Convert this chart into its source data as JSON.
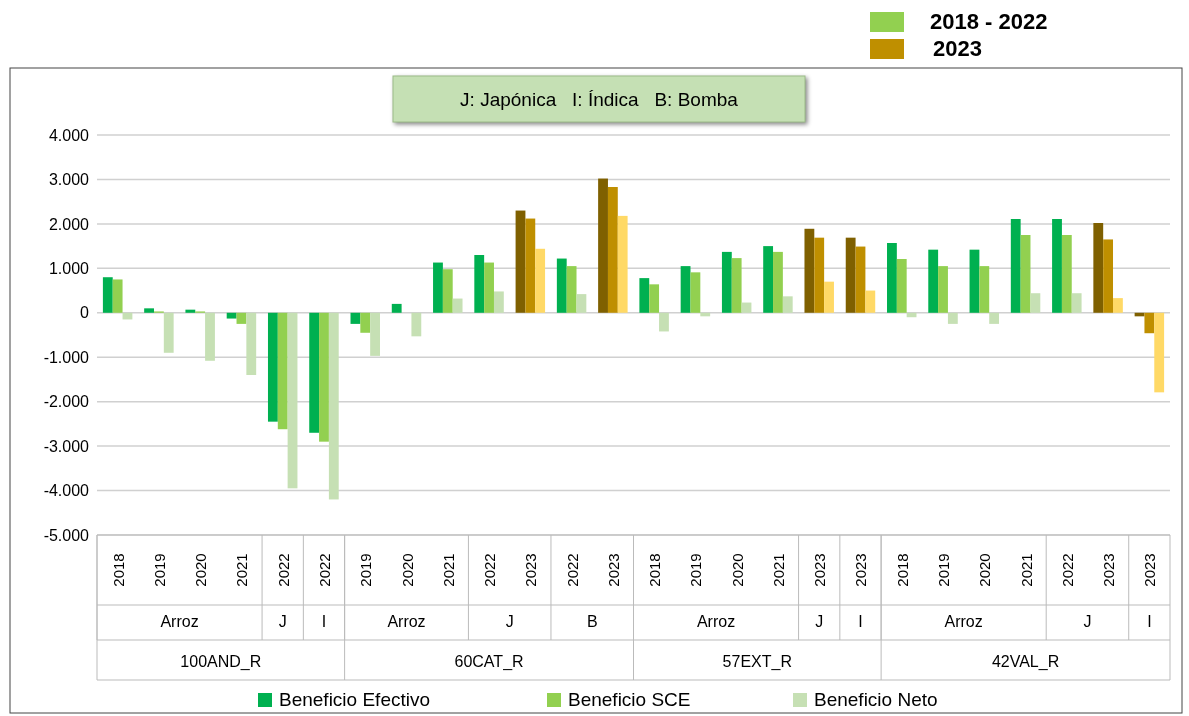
{
  "chart_data": {
    "type": "bar",
    "categories": [
      "2018",
      "2019",
      "2020",
      "2021",
      "2022",
      "2022",
      "2019",
      "2020",
      "2021",
      "2022",
      "2023",
      "2022",
      "2023",
      "2018",
      "2019",
      "2020",
      "2021",
      "2023",
      "2023",
      "2018",
      "2019",
      "2020",
      "2021",
      "2022",
      "2023",
      "2023"
    ],
    "series": [
      {
        "name": "Beneficio Efectivo",
        "color": "#00b050",
        "colors": [
          "#00b050",
          "#00b050",
          "#00b050",
          "#00b050",
          "#00b050",
          "#00b050",
          "#00b050",
          "#00b050",
          "#00b050",
          "#00b050",
          "#7f6000",
          "#00b050",
          "#7f6000",
          "#00b050",
          "#00b050",
          "#00b050",
          "#00b050",
          "#7f6000",
          "#7f6000",
          "#00b050",
          "#00b050",
          "#00b050",
          "#00b050",
          "#00b050",
          "#7f6000",
          "#7f6000"
        ],
        "values": [
          800,
          100,
          70,
          -130,
          -2450,
          -2700,
          -250,
          200,
          1130,
          1300,
          2300,
          1220,
          3020,
          780,
          1050,
          1370,
          1500,
          1890,
          1690,
          1570,
          1420,
          1420,
          2110,
          2110,
          2020,
          -80
        ]
      },
      {
        "name": "Beneficio SCE",
        "color": "#92d050",
        "colors": [
          "#92d050",
          "#92d050",
          "#92d050",
          "#92d050",
          "#92d050",
          "#92d050",
          "#92d050",
          "#92d050",
          "#92d050",
          "#92d050",
          "#bf8f00",
          "#92d050",
          "#bf8f00",
          "#92d050",
          "#92d050",
          "#92d050",
          "#92d050",
          "#bf8f00",
          "#bf8f00",
          "#92d050",
          "#92d050",
          "#92d050",
          "#92d050",
          "#92d050",
          "#bf8f00",
          "#bf8f00"
        ],
        "values": [
          750,
          30,
          30,
          -250,
          -2620,
          -2900,
          -450,
          0,
          980,
          1130,
          2120,
          1050,
          2830,
          640,
          910,
          1230,
          1370,
          1690,
          1490,
          1210,
          1050,
          1050,
          1750,
          1750,
          1650,
          -460
        ]
      },
      {
        "name": "Beneficio Neto",
        "color": "#c6e0b4",
        "colors": [
          "#c6e0b4",
          "#c6e0b4",
          "#c6e0b4",
          "#c6e0b4",
          "#c6e0b4",
          "#c6e0b4",
          "#c6e0b4",
          "#c6e0b4",
          "#c6e0b4",
          "#c6e0b4",
          "#ffd966",
          "#c6e0b4",
          "#ffd966",
          "#c6e0b4",
          "#c6e0b4",
          "#c6e0b4",
          "#c6e0b4",
          "#ffd966",
          "#ffd966",
          "#c6e0b4",
          "#c6e0b4",
          "#c6e0b4",
          "#c6e0b4",
          "#c6e0b4",
          "#ffd966",
          "#ffd966"
        ],
        "values": [
          -150,
          -900,
          -1080,
          -1400,
          -3950,
          -4200,
          -970,
          -530,
          320,
          480,
          1440,
          420,
          2180,
          -420,
          -80,
          230,
          370,
          700,
          500,
          -100,
          -250,
          -250,
          440,
          440,
          330,
          -1790
        ]
      }
    ],
    "ylim": [
      -5000,
      4000
    ],
    "yticks": [
      {
        "value": -5000,
        "label": "-5.000"
      },
      {
        "value": -4000,
        "label": "-4.000"
      },
      {
        "value": -3000,
        "label": "-3.000"
      },
      {
        "value": -2000,
        "label": "-2.000"
      },
      {
        "value": -1000,
        "label": "-1.000"
      },
      {
        "value": 0,
        "label": "0"
      },
      {
        "value": 1000,
        "label": "1.000"
      },
      {
        "value": 2000,
        "label": "2.000"
      },
      {
        "value": 3000,
        "label": "3.000"
      },
      {
        "value": 4000,
        "label": "4.000"
      }
    ],
    "grid": "y",
    "legend": "bottom",
    "annotations": [
      "J: Japónica   I: Índica   B: Bomba",
      "2018 - 2022",
      "2023",
      "Arroz",
      "J",
      "I",
      "Arroz",
      "J",
      "B",
      "Arroz",
      "J",
      "I",
      "Arroz",
      "J",
      "I",
      "100AND_R",
      "60CAT_R",
      "57EXT_R",
      "42VAL_R"
    ]
  }
}
